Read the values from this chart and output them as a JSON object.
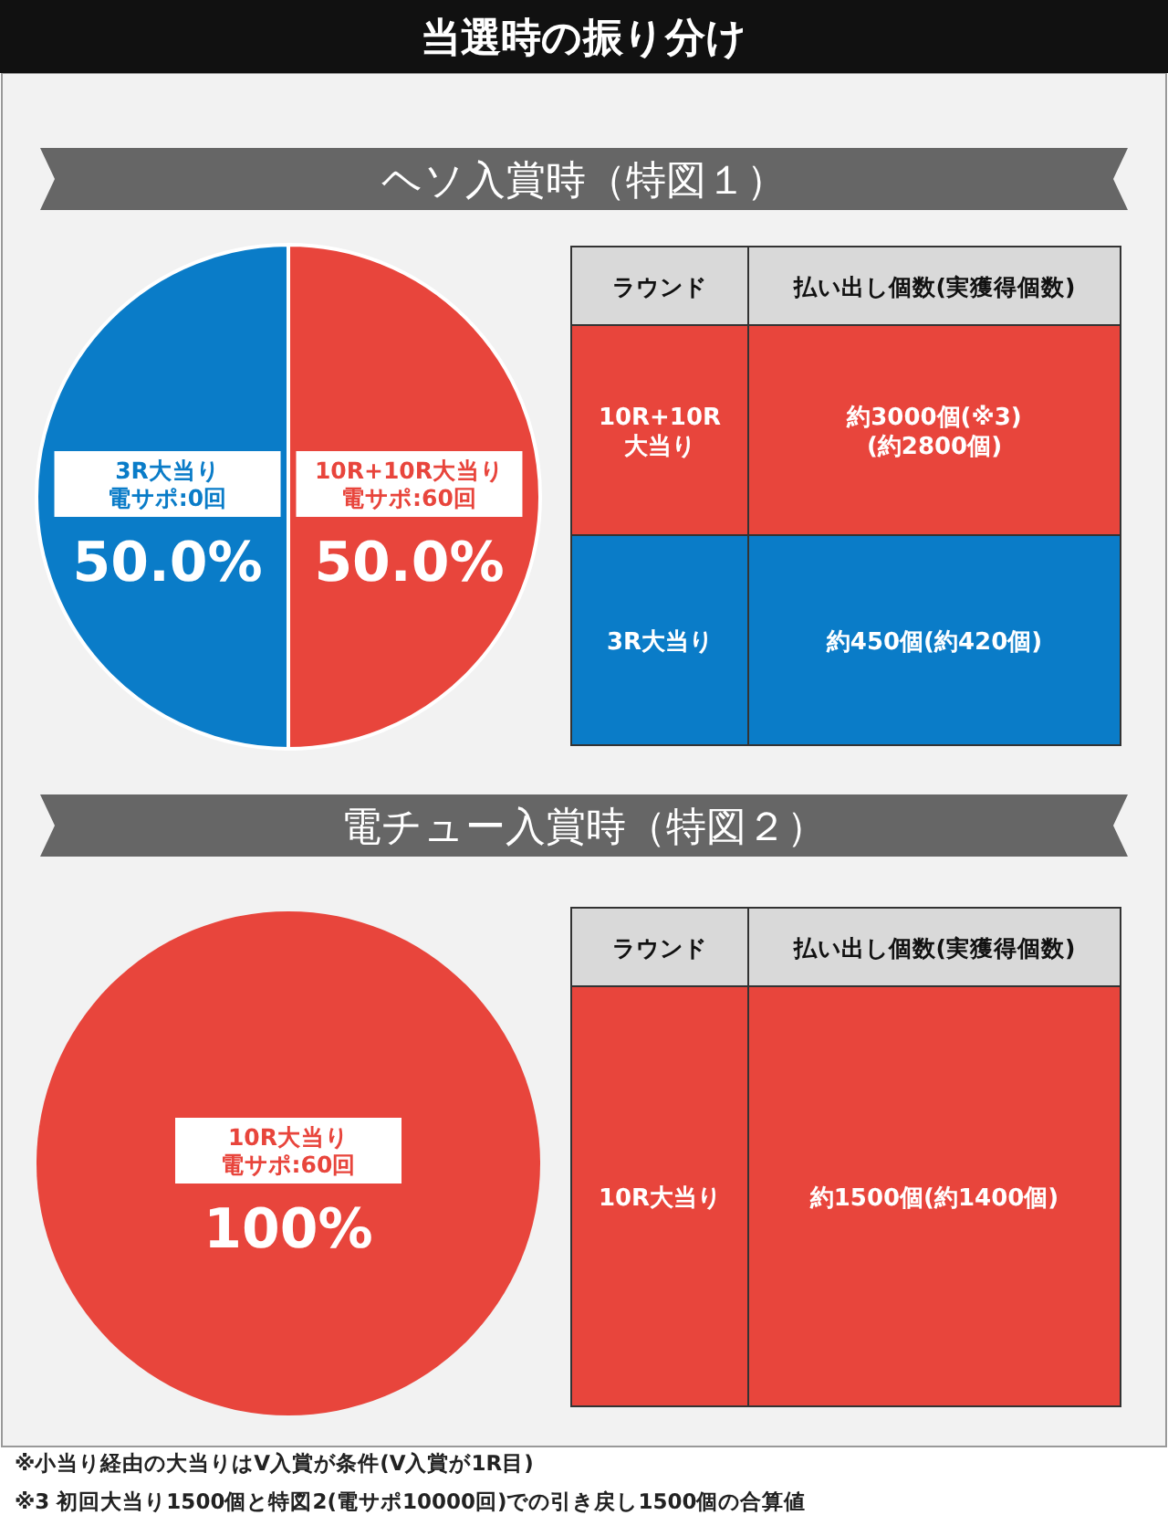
{
  "chart_data": [
    {
      "type": "pie",
      "title": "当選時の振り分け",
      "subtitle": "ヘソ入賞時（特図１）",
      "categories": [
        "10R+10R大当り",
        "3R大当り"
      ],
      "annotations": [
        "電サポ:60回",
        "電サポ:0回"
      ],
      "values": [
        50.0,
        50.0
      ],
      "colors": [
        "#e8453c",
        "#0a7cc8"
      ],
      "value_labels": [
        "50.0%",
        "50.0%"
      ]
    },
    {
      "type": "other",
      "annotations": [
        "ラウンド",
        "払い出し個数(実獲得個数)",
        "10R+10R\n大当り",
        "約3000個(※3)\n(約2800個)",
        "3R大当り",
        "約450個(約420個)"
      ],
      "colors": [
        "#d9d9d9",
        "#d9d9d9",
        "#e8453c",
        "#e8453c",
        "#0a7cc8",
        "#0a7cc8"
      ]
    },
    {
      "type": "pie",
      "subtitle": "電チュー入賞時（特図２）",
      "categories": [
        "10R大当り"
      ],
      "annotations": [
        "電サポ:60回"
      ],
      "values": [
        100
      ],
      "colors": [
        "#e8453c"
      ],
      "value_labels": [
        "100%"
      ]
    },
    {
      "type": "other",
      "annotations": [
        "ラウンド",
        "払い出し個数(実獲得個数)",
        "10R大当り",
        "約1500個(約1400個)"
      ],
      "colors": [
        "#d9d9d9",
        "#d9d9d9",
        "#e8453c",
        "#e8453c"
      ]
    },
    {
      "type": "other",
      "annotations": [
        "※小当り経由の大当りはV入賞が条件(V入賞が1R目)",
        "※3 初回大当り1500個と特図2(電サポ10000回)での引き戻し1500個の合算値"
      ]
    }
  ]
}
